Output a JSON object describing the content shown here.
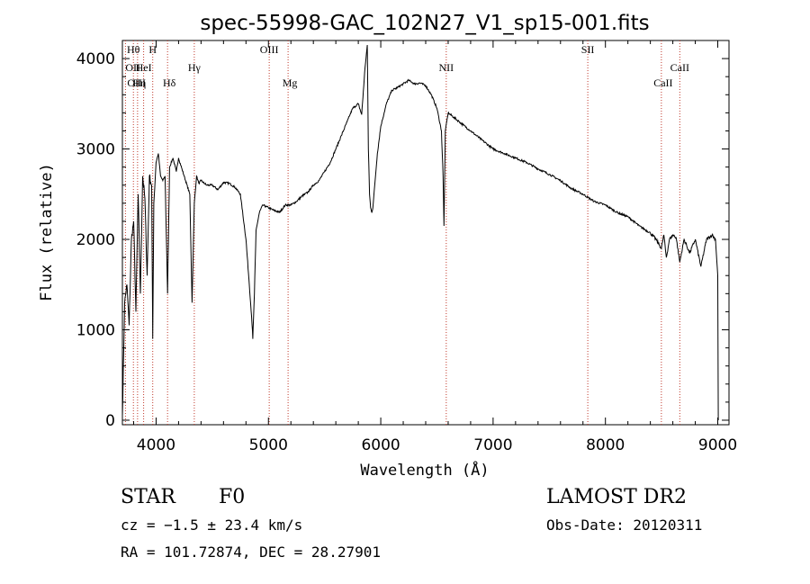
{
  "chart_data": {
    "type": "line",
    "title": "spec-55998-GAC_102N27_V1_sp15-001.fits",
    "xlabel": "Wavelength (Å)",
    "ylabel": "Flux (relative)",
    "xlim": [
      3700,
      9100
    ],
    "ylim": [
      -50,
      4200
    ],
    "x_ticks": [
      4000,
      5000,
      6000,
      7000,
      8000,
      9000
    ],
    "y_ticks": [
      0,
      1000,
      2000,
      3000,
      4000
    ],
    "grid": false,
    "series": [
      {
        "x": [
          3700,
          3720,
          3740,
          3760,
          3780,
          3800,
          3820,
          3840,
          3860,
          3880,
          3900,
          3920,
          3940,
          3960,
          3970,
          3980,
          4000,
          4020,
          4040,
          4060,
          4080,
          4102,
          4120,
          4150,
          4180,
          4200,
          4250,
          4300,
          4320,
          4340,
          4360,
          4380,
          4400,
          4450,
          4500,
          4550,
          4600,
          4650,
          4700,
          4750,
          4800,
          4830,
          4850,
          4861,
          4875,
          4890,
          4920,
          4950,
          5000,
          5050,
          5100,
          5150,
          5200,
          5250,
          5300,
          5350,
          5400,
          5450,
          5500,
          5550,
          5600,
          5650,
          5700,
          5750,
          5800,
          5830,
          5860,
          5880,
          5890,
          5900,
          5910,
          5920,
          5930,
          5950,
          5970,
          6000,
          6050,
          6100,
          6150,
          6200,
          6250,
          6300,
          6350,
          6400,
          6450,
          6500,
          6540,
          6555,
          6563,
          6575,
          6600,
          6650,
          6700,
          6800,
          6900,
          7000,
          7100,
          7200,
          7300,
          7400,
          7500,
          7600,
          7700,
          7800,
          7900,
          8000,
          8100,
          8200,
          8300,
          8400,
          8450,
          8498,
          8520,
          8542,
          8570,
          8600,
          8630,
          8662,
          8700,
          8750,
          8800,
          8850,
          8900,
          8950,
          8980,
          9000,
          9005
        ],
        "y": [
          50,
          1300,
          1500,
          1050,
          2000,
          2200,
          1200,
          2500,
          1400,
          2700,
          2450,
          1600,
          2700,
          2600,
          900,
          2400,
          2850,
          2950,
          2700,
          2650,
          2700,
          1400,
          2800,
          2900,
          2750,
          2900,
          2700,
          2500,
          1300,
          2400,
          2700,
          2620,
          2650,
          2600,
          2600,
          2550,
          2630,
          2620,
          2580,
          2500,
          2000,
          1500,
          1150,
          900,
          1400,
          2100,
          2300,
          2380,
          2350,
          2320,
          2300,
          2380,
          2380,
          2420,
          2480,
          2520,
          2600,
          2650,
          2750,
          2850,
          3000,
          3150,
          3300,
          3450,
          3500,
          3380,
          3900,
          4150,
          3000,
          2500,
          2350,
          2300,
          2350,
          2650,
          2950,
          3250,
          3500,
          3650,
          3680,
          3720,
          3760,
          3720,
          3730,
          3700,
          3600,
          3450,
          3200,
          2700,
          2150,
          3200,
          3400,
          3350,
          3300,
          3200,
          3100,
          3000,
          2950,
          2900,
          2850,
          2780,
          2720,
          2650,
          2560,
          2500,
          2420,
          2380,
          2300,
          2250,
          2150,
          2070,
          2000,
          1900,
          2050,
          1800,
          2000,
          2050,
          2020,
          1750,
          2000,
          1850,
          2000,
          1700,
          2000,
          2050,
          2000,
          1600,
          0
        ]
      }
    ],
    "line_markers": [
      {
        "label": "Hθ",
        "x": 3798,
        "row": 0
      },
      {
        "label": "H",
        "x": 3970,
        "row": 0
      },
      {
        "label": "OII",
        "x": 3727,
        "row": 1
      },
      {
        "label": "HeI",
        "x": 3889,
        "row": 1
      },
      {
        "label": "Hγ",
        "x": 4340,
        "row": 1
      },
      {
        "label": "OIII",
        "x": 5007,
        "row": 0
      },
      {
        "label": "NII",
        "x": 6583,
        "row": 1
      },
      {
        "label": "SII",
        "x": 7843,
        "row": 0
      },
      {
        "label": "CaII",
        "x": 8662,
        "row": 1
      },
      {
        "label": "OIII",
        "x": 3727,
        "row": 2
      },
      {
        "label": "Hη",
        "x": 3835,
        "row": 2
      },
      {
        "label": "Hδ",
        "x": 4102,
        "row": 2
      },
      {
        "label": "Mg",
        "x": 5175,
        "row": 2
      },
      {
        "label": "CaII",
        "x": 8498,
        "row": 2
      }
    ],
    "marker_lines_x": [
      3727,
      3798,
      3835,
      3889,
      3970,
      4102,
      4340,
      5007,
      5175,
      6583,
      7843,
      8498,
      8662
    ]
  },
  "info": {
    "class": "STAR",
    "subclass": "F0",
    "survey": "LAMOST DR2",
    "cz": "cz = −1.5 ± 23.4 km/s",
    "obs_date": "Obs-Date: 20120311",
    "coords": "RA = 101.72874, DEC =  28.27901"
  }
}
